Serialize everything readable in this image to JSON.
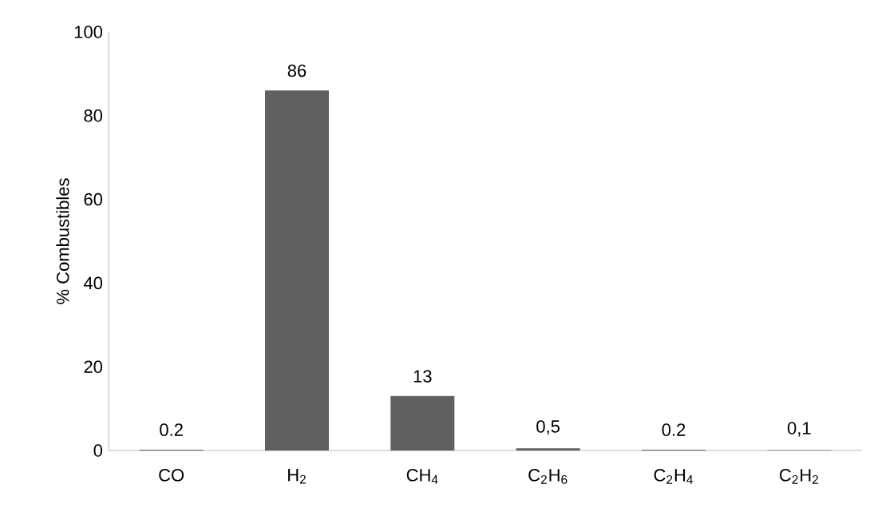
{
  "chart_data": {
    "type": "bar",
    "ylabel": "% Combustibles",
    "categories": [
      "CO",
      "H$_{2}$",
      "CH$_{4}$",
      "C$_{2}$H$_{6}$",
      "C$_{2}$H$_{4}$",
      "C$_{2}$H$_{2}$"
    ],
    "values": [
      0.2,
      86,
      13,
      0.5,
      0.2,
      0.1
    ],
    "value_labels": [
      "0.2",
      "86",
      "13",
      "0,5",
      "0.2",
      "0,1"
    ],
    "color": "#606060",
    "ylim": [
      0,
      100
    ],
    "yticks": [
      0,
      20,
      40,
      60,
      80,
      100
    ]
  }
}
